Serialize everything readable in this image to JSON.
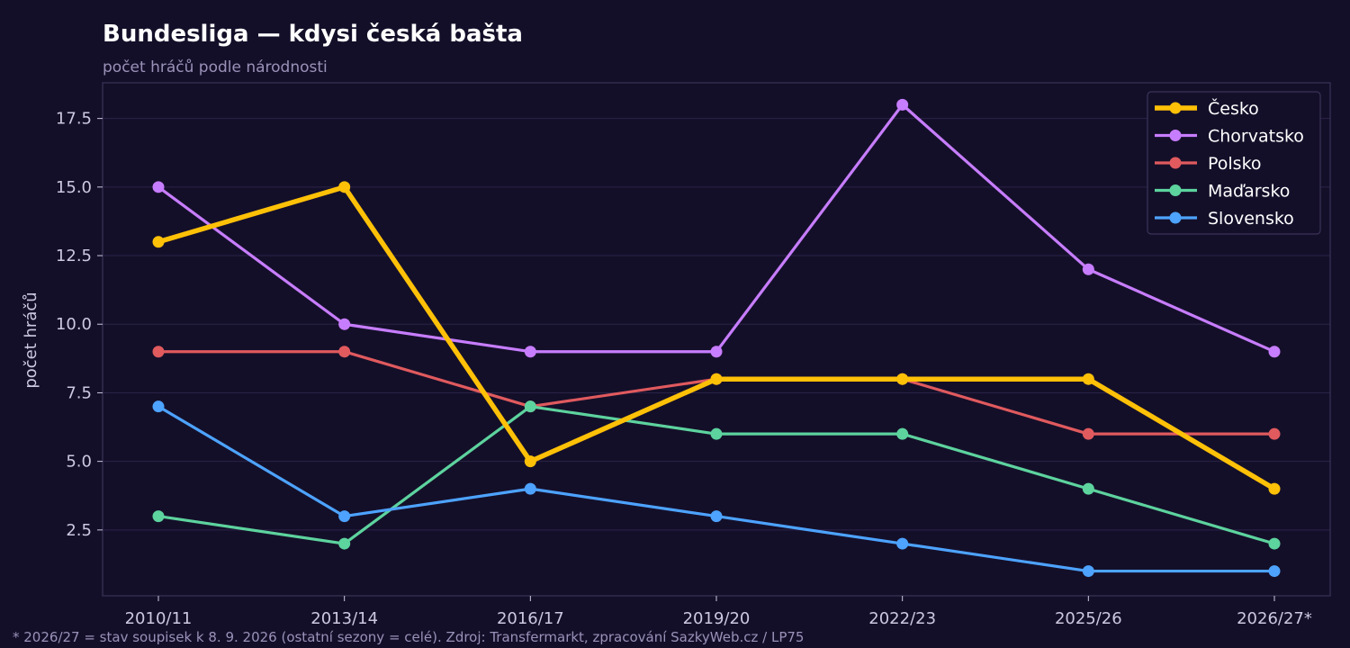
{
  "chart_data": {
    "type": "line",
    "title": "Bundesliga — kdysi česká bašta",
    "subtitle": "počet hráčů podle národnosti",
    "ylabel": "počet hráčů",
    "xlabel": "",
    "categories": [
      "2010/11",
      "2013/14",
      "2016/17",
      "2019/20",
      "2022/23",
      "2025/26",
      "2026/27*"
    ],
    "ylim": [
      0.1,
      18.8
    ],
    "yticks": [
      2.5,
      5.0,
      7.5,
      10.0,
      12.5,
      15.0,
      17.5
    ],
    "grid": true,
    "legend_position": "top-right",
    "series": [
      {
        "name": "Česko",
        "color": "#ffc107",
        "emphasis": true,
        "values": [
          13,
          15,
          5,
          8,
          8,
          8,
          4
        ]
      },
      {
        "name": "Chorvatsko",
        "color": "#c77dff",
        "values": [
          15,
          10,
          9,
          9,
          18,
          12,
          9
        ]
      },
      {
        "name": "Polsko",
        "color": "#e05a5e",
        "values": [
          9,
          9,
          7,
          8,
          8,
          6,
          6
        ]
      },
      {
        "name": "Maďarsko",
        "color": "#5dd39e",
        "values": [
          3,
          2,
          7,
          6,
          6,
          4,
          2
        ]
      },
      {
        "name": "Slovensko",
        "color": "#4da3ff",
        "values": [
          7,
          3,
          4,
          3,
          2,
          1,
          1
        ]
      }
    ],
    "footnote": "* 2026/27 = stav soupisek k 8. 9. 2026 (ostatní sezony = celé). Zdroj: Transfermarkt, zpracování SazkyWeb.cz / LP75"
  }
}
